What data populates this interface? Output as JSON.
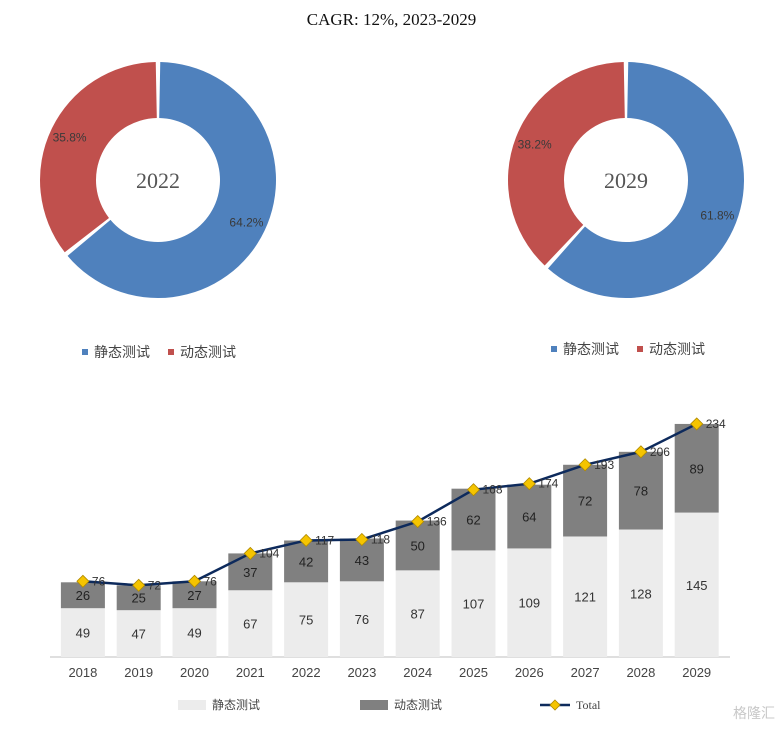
{
  "title": "CAGR: 12%, 2023-2029",
  "colors": {
    "static_donut": "#4f81bd",
    "dynamic_donut": "#c0504d",
    "static_bar": "#ececec",
    "dynamic_bar": "#808080",
    "total_line": "#0d2a5c",
    "marker": "#f5c400"
  },
  "donuts": [
    {
      "center_label": "2022",
      "slices": [
        {
          "name": "静态测试",
          "value": 64.2,
          "label": "64.2%"
        },
        {
          "name": "动态测试",
          "value": 35.8,
          "label": "35.8%"
        }
      ]
    },
    {
      "center_label": "2029",
      "slices": [
        {
          "name": "静态测试",
          "value": 61.8,
          "label": "61.8%"
        },
        {
          "name": "动态测试",
          "value": 38.2,
          "label": "38.2%"
        }
      ]
    }
  ],
  "donut_legend": [
    "静态测试",
    "动态测试"
  ],
  "chart_data": {
    "type": "bar",
    "stacked": true,
    "categories": [
      "2018",
      "2019",
      "2020",
      "2021",
      "2022",
      "2023",
      "2024",
      "2025",
      "2026",
      "2027",
      "2028",
      "2029"
    ],
    "series": [
      {
        "name": "静态测试",
        "values": [
          49,
          47,
          49,
          67,
          75,
          76,
          87,
          107,
          109,
          121,
          128,
          145
        ]
      },
      {
        "name": "动态测试",
        "values": [
          26,
          25,
          27,
          37,
          42,
          43,
          50,
          62,
          64,
          72,
          78,
          89
        ]
      }
    ],
    "line_series": {
      "name": "Total",
      "values": [
        76,
        72,
        76,
        104,
        117,
        118,
        136,
        168,
        174,
        193,
        206,
        234
      ]
    },
    "ylim": [
      0,
      250
    ],
    "grid": false,
    "legend_position": "bottom"
  },
  "watermark": "格隆汇"
}
